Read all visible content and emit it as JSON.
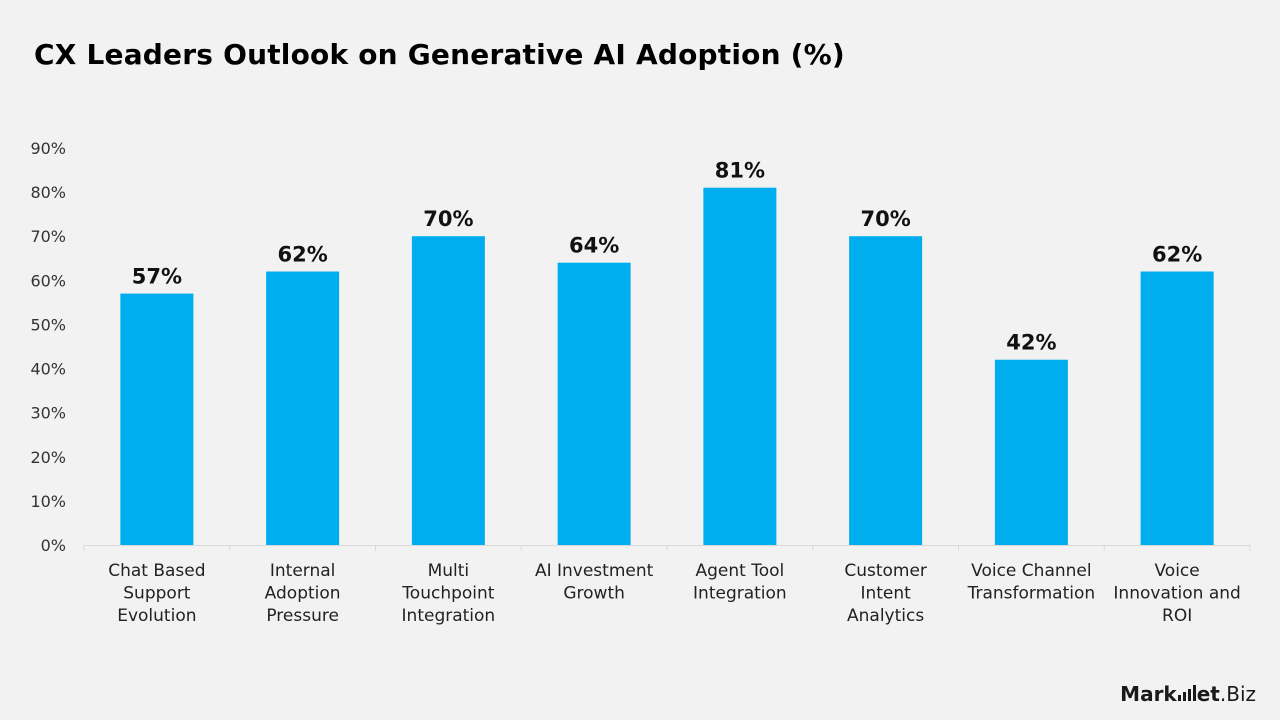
{
  "chart_data": {
    "type": "bar",
    "title": "CX Leaders Outlook on Generative AI Adoption (%)",
    "categories": [
      "Chat Based Support Evolution",
      "Internal Adoption Pressure",
      "Multi Touchpoint Integration",
      "AI Investment Growth",
      "Agent Tool Integration",
      "Customer Intent Analytics",
      "Voice Channel Transformation",
      "Voice Innovation and ROI"
    ],
    "category_lines": [
      [
        "Chat Based",
        "Support",
        "Evolution"
      ],
      [
        "Internal",
        "Adoption",
        "Pressure"
      ],
      [
        "Multi",
        "Touchpoint",
        "Integration"
      ],
      [
        "AI Investment",
        "Growth"
      ],
      [
        "Agent Tool",
        "Integration"
      ],
      [
        "Customer",
        "Intent",
        "Analytics"
      ],
      [
        "Voice Channel",
        "Transformation"
      ],
      [
        "Voice",
        "Innovation and",
        "ROI"
      ]
    ],
    "values": [
      57,
      62,
      70,
      64,
      81,
      70,
      42,
      62
    ],
    "data_labels": [
      "57%",
      "62%",
      "70%",
      "64%",
      "81%",
      "70%",
      "42%",
      "62%"
    ],
    "y_ticks": [
      "0%",
      "10%",
      "20%",
      "30%",
      "40%",
      "50%",
      "60%",
      "70%",
      "80%",
      "90%"
    ],
    "ylim": [
      0,
      90
    ],
    "xlabel": "",
    "ylabel": "",
    "grid": false,
    "legend": "none",
    "bar_color": "#00aeef"
  },
  "brand": {
    "name_prefix": "Mark",
    "name_bold_suffix": "et",
    "name_tail": ".Biz"
  }
}
